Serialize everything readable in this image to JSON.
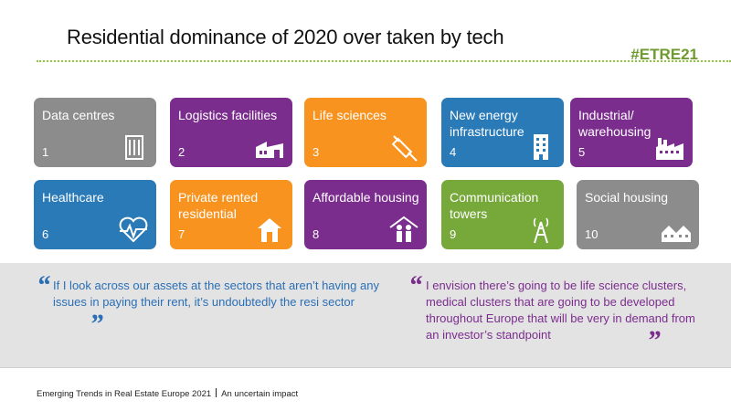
{
  "slide": {
    "title": "Residential dominance of 2020 over taken by tech",
    "hashtag": "#ETRE21"
  },
  "colors": {
    "grey": "#8c8c8c",
    "purple": "#7b2d8e",
    "orange": "#f7931e",
    "blue": "#2a7ab8",
    "green": "#76a83a",
    "title_rule": "#8dc63f"
  },
  "tiles": [
    {
      "label": "Data centres",
      "number": "1",
      "color": "grey",
      "icon": "server-rack-icon"
    },
    {
      "label": "Logistics facilities",
      "number": "2",
      "color": "purple",
      "icon": "warehouse-icon"
    },
    {
      "label": "Life sciences",
      "number": "3",
      "color": "orange",
      "icon": "syringe-icon"
    },
    {
      "label": "New energy infrastructure",
      "number": "4",
      "color": "blue",
      "icon": "tall-building-icon"
    },
    {
      "label": "Industrial/ warehousing",
      "number": "5",
      "color": "purple",
      "icon": "factory-icon"
    },
    {
      "label": "Healthcare",
      "number": "6",
      "color": "blue",
      "icon": "heartbeat-icon"
    },
    {
      "label": "Private rented residential",
      "number": "7",
      "color": "orange",
      "icon": "house-icon"
    },
    {
      "label": "Affordable housing",
      "number": "8",
      "color": "purple",
      "icon": "family-house-icon"
    },
    {
      "label": "Communication towers",
      "number": "9",
      "color": "green",
      "icon": "radio-tower-icon"
    },
    {
      "label": "Social housing",
      "number": "10",
      "color": "grey",
      "icon": "row-houses-icon"
    }
  ],
  "quotes": {
    "left": "If I look across our assets at the sectors that aren’t having any issues in paying their rent, it’s undoubtedly the resi sector",
    "right": "I envision there’s going to be life science clusters, medical clusters that are going to be developed throughout Europe that will be very in demand from an investor’s standpoint"
  },
  "footer": {
    "report": "Emerging Trends in Real Estate Europe 2021",
    "section": "An uncertain impact"
  }
}
